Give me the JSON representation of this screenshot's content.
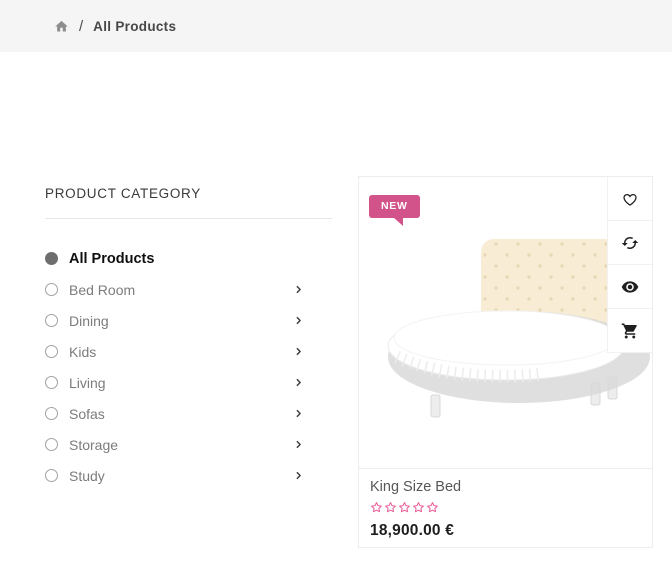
{
  "breadcrumb": {
    "separator": "/",
    "current": "All Products"
  },
  "sidebar": {
    "title": "PRODUCT CATEGORY",
    "items": [
      {
        "label": "All Products",
        "selected": true,
        "chevron": false
      },
      {
        "label": "Bed Room",
        "selected": false,
        "chevron": true
      },
      {
        "label": "Dining",
        "selected": false,
        "chevron": true
      },
      {
        "label": "Kids",
        "selected": false,
        "chevron": true
      },
      {
        "label": "Living",
        "selected": false,
        "chevron": true
      },
      {
        "label": "Sofas",
        "selected": false,
        "chevron": true
      },
      {
        "label": "Storage",
        "selected": false,
        "chevron": true
      },
      {
        "label": "Study",
        "selected": false,
        "chevron": true
      }
    ]
  },
  "product_card": {
    "badge": "NEW",
    "title": "King Size Bed",
    "price": "18,900.00 €",
    "rating": {
      "stars_total": 5,
      "stars_filled": 0
    },
    "actions": [
      {
        "name": "wishlist",
        "icon": "heart-icon"
      },
      {
        "name": "compare",
        "icon": "sync-icon"
      },
      {
        "name": "quick-view",
        "icon": "eye-icon"
      },
      {
        "name": "add-to-cart",
        "icon": "cart-icon"
      }
    ]
  },
  "colors": {
    "accent_pink": "#d2538a",
    "star_pink": "#e75e9a",
    "breadcrumb_bg": "#f5f5f5",
    "icon_dark": "#1f1f1f"
  }
}
